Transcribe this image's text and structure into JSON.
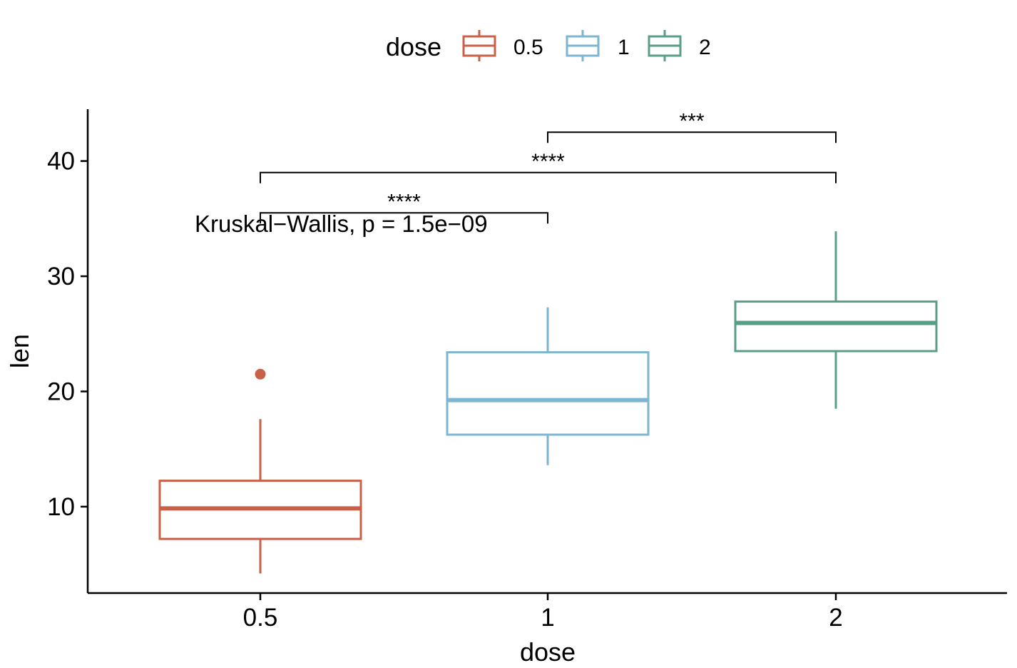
{
  "chart_data": {
    "type": "box",
    "title": "",
    "xlabel": "dose",
    "ylabel": "len",
    "categories": [
      "0.5",
      "1",
      "2"
    ],
    "ylim": [
      2.5,
      44.5
    ],
    "yticks": [
      10,
      20,
      30,
      40
    ],
    "grid": false,
    "legend": {
      "title": "dose",
      "placement": "top",
      "entries": [
        "0.5",
        "1",
        "2"
      ]
    },
    "series": [
      {
        "category": "0.5",
        "color": "#C8604A",
        "lower_whisker": 4.2,
        "q1": 7.2,
        "median": 9.85,
        "q3": 12.25,
        "upper_whisker": 17.6,
        "outliers": [
          21.5
        ]
      },
      {
        "category": "1",
        "color": "#7EB6D2",
        "lower_whisker": 13.6,
        "q1": 16.25,
        "median": 19.25,
        "q3": 23.4,
        "upper_whisker": 27.3,
        "outliers": []
      },
      {
        "category": "2",
        "color": "#5B9E86",
        "lower_whisker": 18.5,
        "q1": 23.5,
        "median": 25.95,
        "q3": 27.8,
        "upper_whisker": 33.9,
        "outliers": []
      }
    ],
    "comparisons": [
      {
        "from": "0.5",
        "to": "1",
        "y": 35.5,
        "label": "****"
      },
      {
        "from": "0.5",
        "to": "2",
        "y": 39.0,
        "label": "****"
      },
      {
        "from": "1",
        "to": "2",
        "y": 42.5,
        "label": "***"
      }
    ],
    "annotation": {
      "text": "Kruskal−Wallis, p = 1.5e−09",
      "x": "0.5",
      "y": 34.6
    }
  }
}
